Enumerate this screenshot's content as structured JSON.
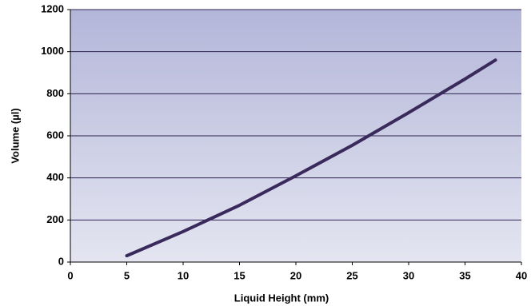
{
  "chart_data": {
    "type": "line",
    "xlabel": "Liquid Height (mm)",
    "ylabel": "Volume (µl)",
    "x": [
      5,
      10,
      15,
      20,
      25,
      30,
      35,
      37.7
    ],
    "values": [
      30,
      145,
      270,
      410,
      555,
      710,
      870,
      960
    ],
    "color": "#3a2a5c",
    "xlim": [
      0,
      40
    ],
    "xticks": [
      0,
      5,
      10,
      15,
      20,
      25,
      30,
      35,
      40
    ],
    "ylim": [
      0,
      1200
    ],
    "yticks": [
      0,
      200,
      400,
      600,
      800,
      1000,
      1200
    ],
    "grid": true
  }
}
